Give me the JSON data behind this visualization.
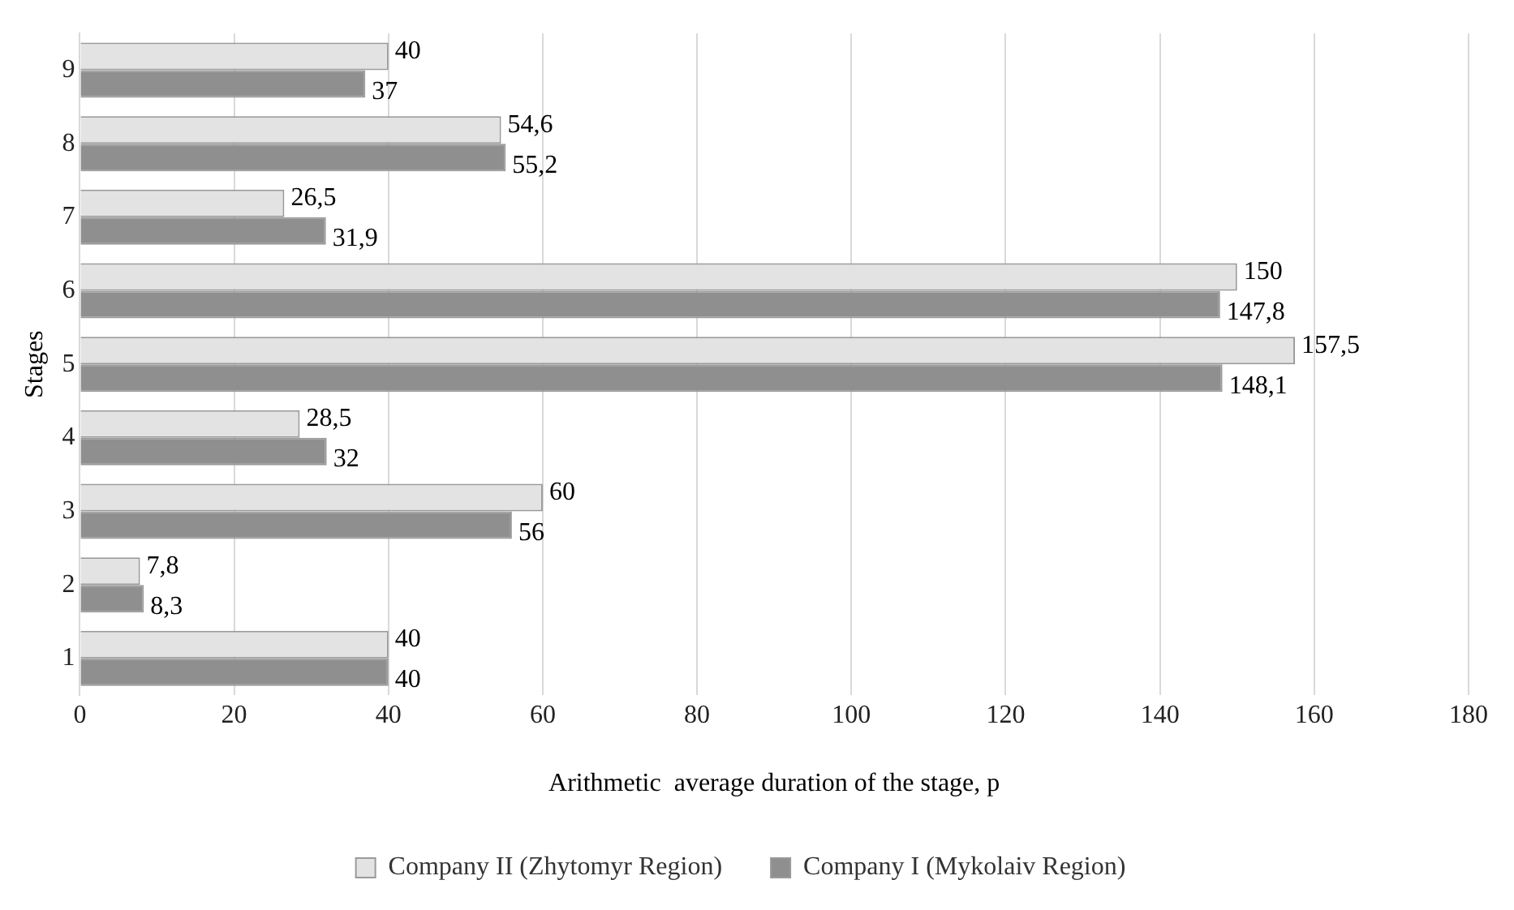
{
  "chart_data": {
    "type": "bar",
    "orientation": "horizontal",
    "categories": [
      "9",
      "8",
      "7",
      "6",
      "5",
      "4",
      "3",
      "2",
      "1"
    ],
    "series": [
      {
        "name": "Company II (Zhytomyr Region)",
        "color": "#e3e3e3",
        "values": [
          40,
          54.6,
          26.5,
          150,
          157.5,
          28.5,
          60,
          7.8,
          40
        ],
        "value_labels": [
          "40",
          "54,6",
          "26,5",
          "150",
          "157,5",
          "28,5",
          "60",
          "7,8",
          "40"
        ]
      },
      {
        "name": "Company I (Mykolaiv Region)",
        "color": "#8f8f8f",
        "values": [
          37,
          55.2,
          31.9,
          147.8,
          148.1,
          32,
          56,
          8.3,
          40
        ],
        "value_labels": [
          "37",
          "55,2",
          "31,9",
          "147,8",
          "148,1",
          "32",
          "56",
          "8,3",
          "40"
        ]
      }
    ],
    "xlim": [
      0,
      180
    ],
    "xticks": [
      0,
      20,
      40,
      60,
      80,
      100,
      120,
      140,
      160,
      180
    ],
    "xlabel": "Arithmetic  average duration of the stage, p",
    "ylabel": "Stages",
    "grid": "x",
    "legend": "bottom"
  }
}
